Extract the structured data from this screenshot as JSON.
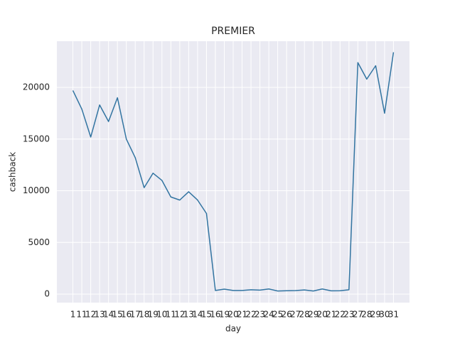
{
  "chart_data": {
    "type": "line",
    "title": "PREMIER",
    "x_label": "day",
    "y_label": "cashback",
    "categories": [
      "1",
      "11",
      "12",
      "13",
      "14",
      "15",
      "16",
      "17",
      "18",
      "19",
      "10",
      "11",
      "12",
      "13",
      "14",
      "15",
      "16",
      "19",
      "20",
      "21",
      "22",
      "23",
      "24",
      "25",
      "26",
      "27",
      "28",
      "29",
      "20",
      "21",
      "22",
      "23",
      "27",
      "28",
      "29",
      "30",
      "31"
    ],
    "series": [
      {
        "name": "cashback",
        "color": "#3274a1",
        "values": [
          19700,
          17900,
          15200,
          18300,
          16700,
          19000,
          15000,
          13200,
          10300,
          11700,
          11000,
          9400,
          9100,
          9900,
          9100,
          7800,
          350,
          480,
          350,
          350,
          420,
          390,
          500,
          300,
          330,
          340,
          400,
          300,
          500,
          320,
          330,
          420,
          22400,
          20800,
          22100,
          17500,
          23400
        ]
      }
    ],
    "ylim": [
      -825,
      24470
    ],
    "yticks": [
      0,
      5000,
      10000,
      15000,
      20000
    ],
    "grid": true
  }
}
